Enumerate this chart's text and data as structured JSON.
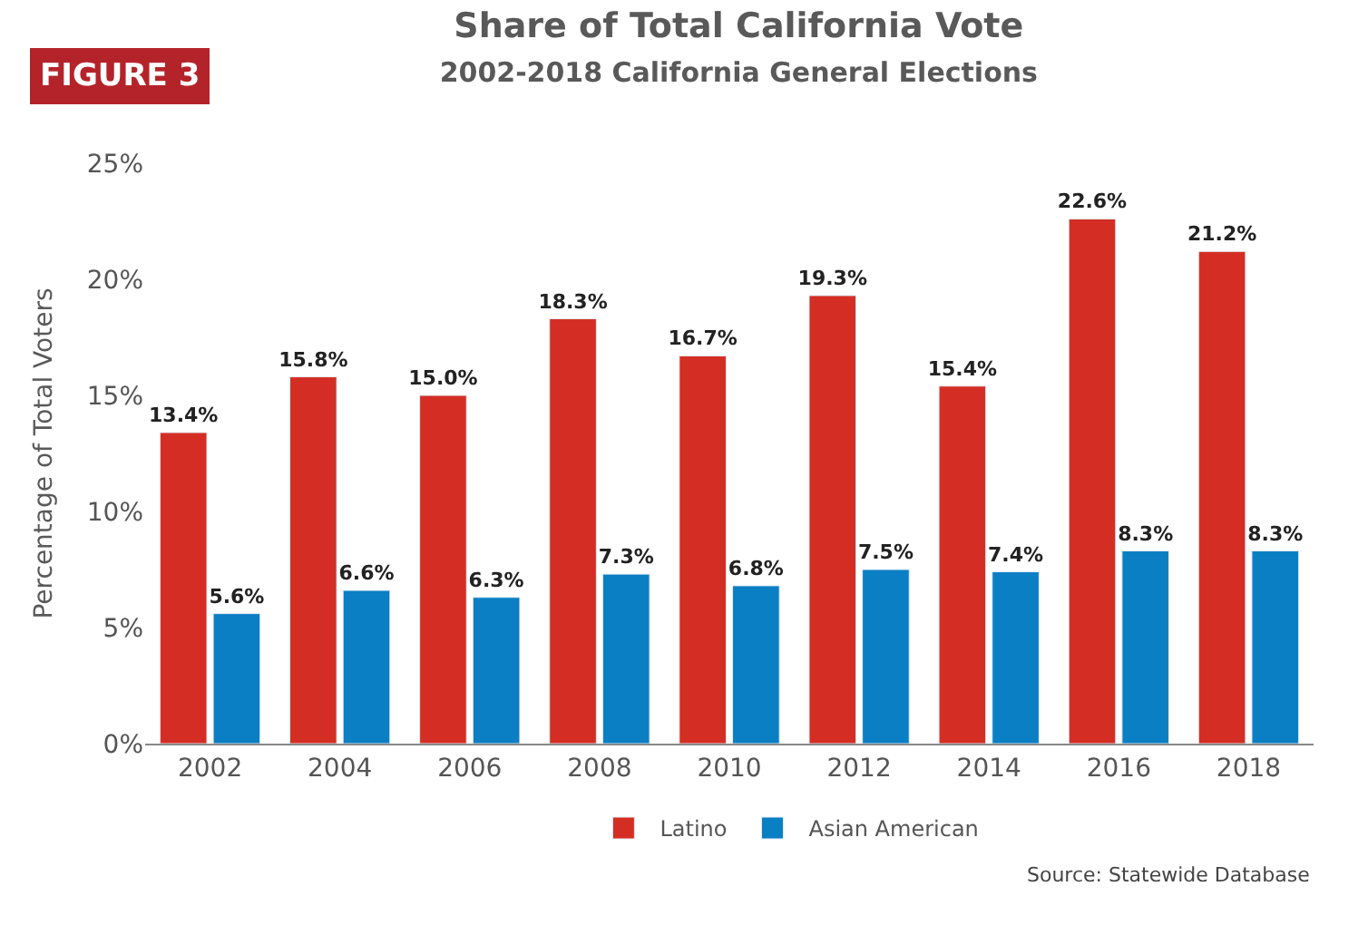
{
  "chart_data": {
    "type": "bar",
    "title": "Share of Total California Vote",
    "subtitle": "2002-2018 California General Elections",
    "ylabel": "Percentage of Total Voters",
    "categories": [
      "2002",
      "2004",
      "2006",
      "2008",
      "2010",
      "2012",
      "2014",
      "2016",
      "2018"
    ],
    "series": [
      {
        "name": "Latino",
        "color": "#d42e24",
        "values": [
          13.4,
          15.8,
          15.0,
          18.3,
          16.7,
          19.3,
          15.4,
          22.6,
          21.2
        ],
        "value_labels": [
          "13.4%",
          "15.8%",
          "15.0%",
          "18.3%",
          "16.7%",
          "19.3%",
          "15.4%",
          "22.6%",
          "21.2%"
        ]
      },
      {
        "name": "Asian American",
        "color": "#0a7fc4",
        "values": [
          5.6,
          6.6,
          6.3,
          7.3,
          6.8,
          7.5,
          7.4,
          8.3,
          8.3
        ],
        "value_labels": [
          "5.6%",
          "6.6%",
          "6.3%",
          "7.3%",
          "6.8%",
          "7.5%",
          "7.4%",
          "8.3%",
          "8.3%"
        ]
      }
    ],
    "ylim": [
      0,
      25
    ],
    "yticks": [
      {
        "value": 0,
        "label": "0%"
      },
      {
        "value": 5,
        "label": "5%"
      },
      {
        "value": 10,
        "label": "10%"
      },
      {
        "value": 15,
        "label": "15%"
      },
      {
        "value": 20,
        "label": "20%"
      },
      {
        "value": 25,
        "label": "25%"
      }
    ],
    "legend": "bottom",
    "annotations": [
      "FIGURE 3",
      "Source: Statewide Database"
    ]
  }
}
